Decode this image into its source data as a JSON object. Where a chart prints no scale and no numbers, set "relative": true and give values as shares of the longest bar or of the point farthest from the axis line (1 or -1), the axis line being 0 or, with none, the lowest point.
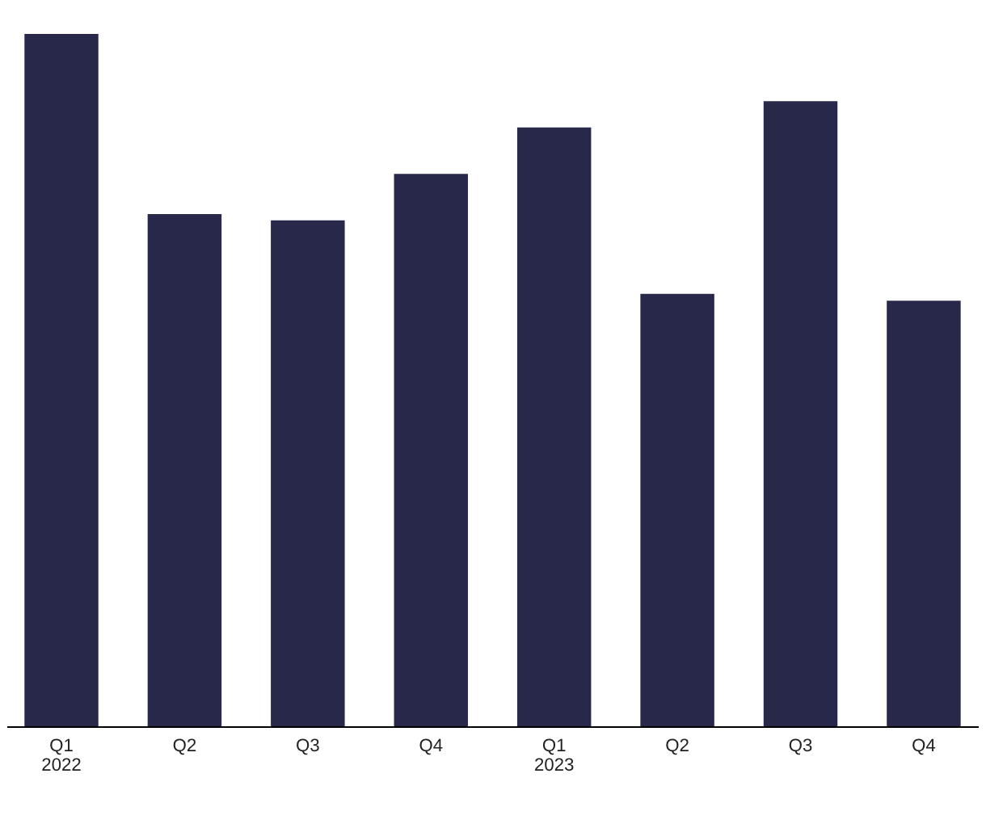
{
  "chart_data": {
    "type": "bar",
    "relative": true,
    "categories": [
      "Q1\n2022",
      "Q2",
      "Q3",
      "Q4",
      "Q1\n2023",
      "Q2",
      "Q3",
      "Q4"
    ],
    "values": [
      1,
      0.74,
      0.731,
      0.798,
      0.865,
      0.625,
      0.903,
      0.615
    ],
    "color": "#28284a",
    "grid": false,
    "legend": false
  }
}
